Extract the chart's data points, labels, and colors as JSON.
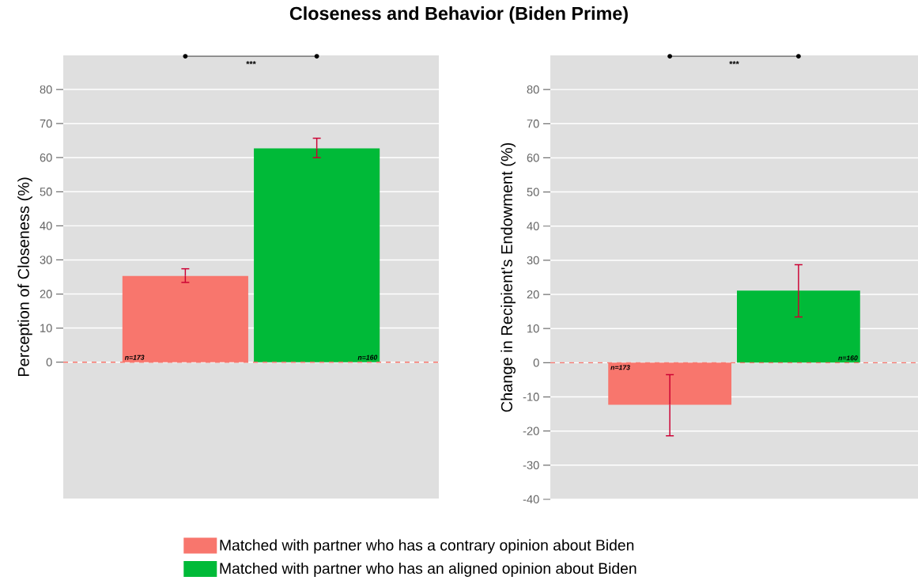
{
  "chart_data": [
    {
      "type": "bar",
      "title": "Closeness and Behavior (Biden Prime)",
      "ylabel": "Perception of Closeness (%)",
      "categories": [
        null
      ],
      "series": [
        {
          "name": "Matched with partner who has a contrary opinion about Biden",
          "color": "#f8766d",
          "values": [
            25.3
          ],
          "errors": [
            [
              23.4,
              27.4
            ]
          ]
        },
        {
          "name": "Matched with partner who has an aligned opinion about Biden",
          "color": "#00ba38",
          "values": [
            62.7
          ],
          "errors": [
            [
              60.0,
              65.7
            ]
          ]
        }
      ],
      "ylim": [
        -40,
        90
      ],
      "yticks": [
        0,
        10,
        20,
        30,
        40,
        50,
        60,
        70,
        80
      ],
      "grid": "y",
      "tick_labels": "y",
      "legend": "bottom",
      "ref_lines": [
        {
          "axis": "y",
          "value": 0,
          "color": "#f8766d",
          "line_style": "dashed"
        }
      ],
      "annotations": [
        "***",
        "n=173",
        "n=160"
      ]
    },
    {
      "type": "bar",
      "ylabel": "Change in Recipient's Endowment (%)",
      "categories": [
        null
      ],
      "series": [
        {
          "color": "#f8766d",
          "values": [
            -12.3
          ],
          "errors": [
            [
              -21.4,
              -3.5
            ]
          ]
        },
        {
          "color": "#00ba38",
          "values": [
            21.1
          ],
          "errors": [
            [
              13.4,
              28.7
            ]
          ]
        }
      ],
      "ylim": [
        -40,
        90
      ],
      "yticks": [
        -40,
        -30,
        -20,
        -10,
        0,
        10,
        20,
        30,
        40,
        50,
        60,
        70,
        80
      ],
      "grid": "y",
      "tick_labels": "y",
      "ref_lines": [
        {
          "axis": "y",
          "value": 0,
          "color": "#f8766d",
          "line_style": "dashed"
        }
      ],
      "annotations": [
        "***",
        "n=173",
        "n=160"
      ]
    }
  ]
}
